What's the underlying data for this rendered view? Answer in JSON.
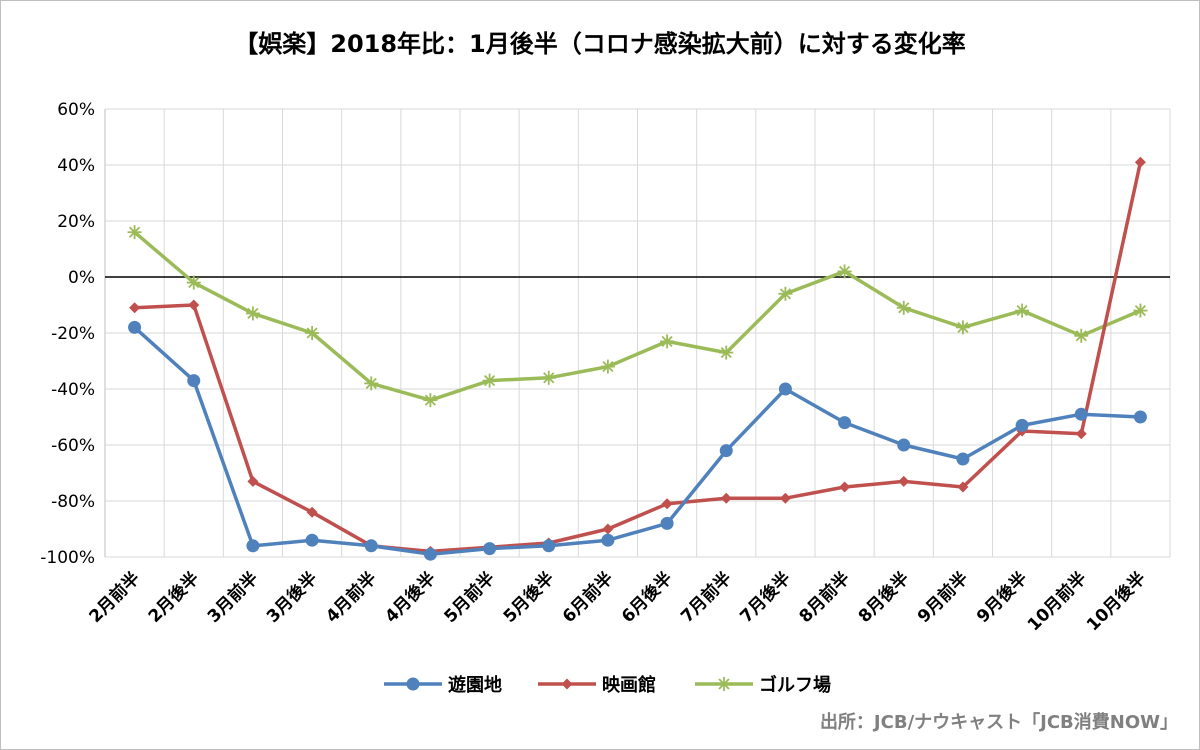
{
  "chart_data": {
    "type": "line",
    "title": "【娯楽】2018年比：1月後半（コロナ感染拡大前）に対する変化率",
    "xlabel": "",
    "ylabel": "",
    "categories": [
      "2月前半",
      "2月後半",
      "3月前半",
      "3月後半",
      "4月前半",
      "4月後半",
      "5月前半",
      "5月後半",
      "6月前半",
      "6月後半",
      "7月前半",
      "7月後半",
      "8月前半",
      "8月後半",
      "9月前半",
      "9月後半",
      "10月前半",
      "10月後半"
    ],
    "ylim": [
      -100,
      60
    ],
    "yticks": [
      60,
      40,
      20,
      0,
      -20,
      -40,
      -60,
      -80,
      -100
    ],
    "ytick_labels": [
      "60%",
      "40%",
      "20%",
      "0%",
      "-20%",
      "-40%",
      "-60%",
      "-80%",
      "-100%"
    ],
    "grid": true,
    "legend_position": "bottom",
    "series": [
      {
        "name": "遊園地",
        "color": "#4f81bd",
        "marker": "circle",
        "values": [
          -18,
          -37,
          -96,
          -94,
          -96,
          -99,
          -97,
          -96,
          -94,
          -88,
          -62,
          -40,
          -52,
          -60,
          -65,
          -53,
          -49,
          -50
        ]
      },
      {
        "name": "映画館",
        "color": "#c0504d",
        "marker": "diamond",
        "values": [
          -11,
          -10,
          -73,
          -84,
          -96,
          -98,
          null,
          -95,
          -90,
          -81,
          -79,
          -79,
          -75,
          -73,
          -75,
          -55,
          -56,
          41
        ]
      },
      {
        "name": "ゴルフ場",
        "color": "#9bbb59",
        "marker": "star",
        "values": [
          16,
          -2,
          -13,
          -20,
          -38,
          -44,
          -37,
          -36,
          -32,
          -23,
          -27,
          -6,
          2,
          -11,
          -18,
          -12,
          -21,
          -12
        ]
      }
    ]
  },
  "source_note": "出所：JCB/ナウキャスト「JCB消費NOW」"
}
